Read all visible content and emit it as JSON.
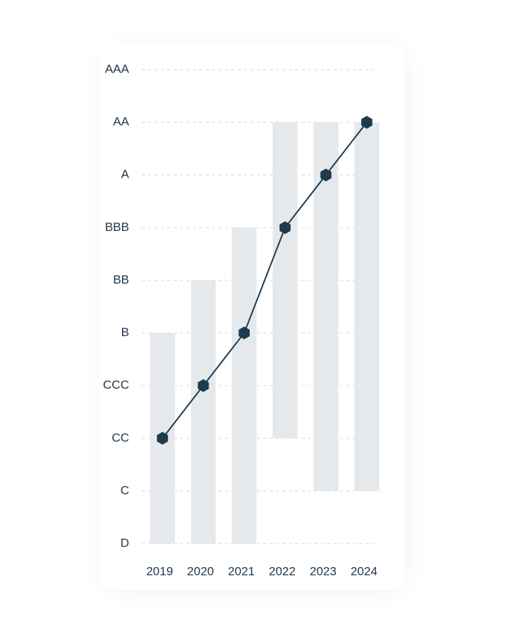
{
  "chart_data": {
    "type": "range-line",
    "categories": [
      "2019",
      "2020",
      "2021",
      "2022",
      "2023",
      "2024"
    ],
    "values": [
      2,
      3,
      4,
      6,
      7,
      8
    ],
    "range_low": [
      0,
      0,
      0,
      2,
      1,
      1
    ],
    "range_high": [
      4,
      5,
      6,
      8,
      8,
      8
    ],
    "color": "#1e3a4f",
    "range_color": "#e6e9ec",
    "ylim": [
      0,
      9
    ],
    "yticks": [
      {
        "value": 0,
        "label": "D"
      },
      {
        "value": 1,
        "label": "C"
      },
      {
        "value": 2,
        "label": "CC"
      },
      {
        "value": 3,
        "label": "CCC"
      },
      {
        "value": 4,
        "label": "B"
      },
      {
        "value": 5,
        "label": "BB"
      },
      {
        "value": 6,
        "label": "BBB"
      },
      {
        "value": 7,
        "label": "A"
      },
      {
        "value": 8,
        "label": "AA"
      },
      {
        "value": 9,
        "label": "AAA"
      }
    ],
    "grid": true
  }
}
